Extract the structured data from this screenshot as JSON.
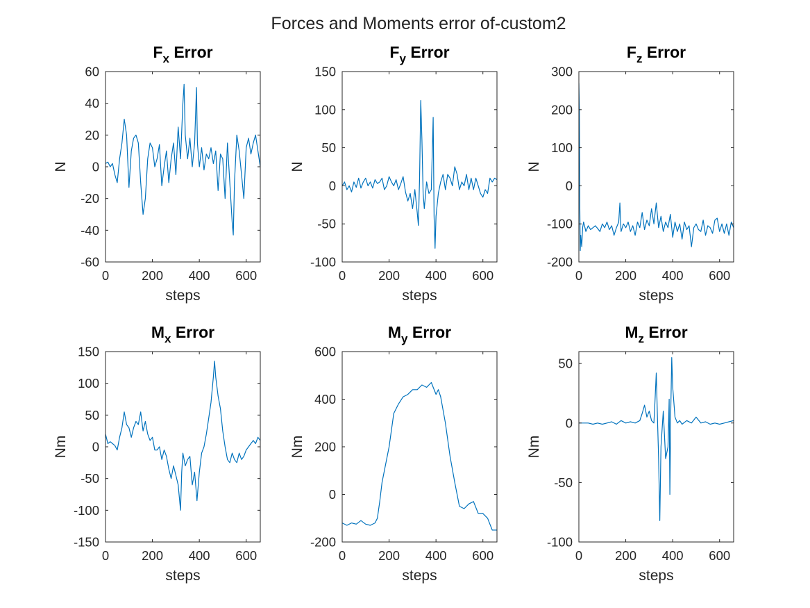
{
  "figure": {
    "title": "Forces and Moments error of-custom2",
    "line_color": "#0072BD"
  },
  "chart_data": [
    {
      "type": "line",
      "title_main": "F",
      "title_sub": "x",
      "title_rest": " Error",
      "xlabel": "steps",
      "ylabel": "N",
      "xlim": [
        0,
        660
      ],
      "ylim": [
        -60,
        60
      ],
      "xticks": [
        "0",
        "200",
        "400",
        "600"
      ],
      "yticks": [
        "-60",
        "-40",
        "-20",
        "0",
        "20",
        "40",
        "60"
      ],
      "grid": false,
      "series": [
        {
          "x": [
            0,
            10,
            20,
            30,
            40,
            50,
            60,
            70,
            80,
            90,
            100,
            110,
            120,
            130,
            140,
            150,
            160,
            170,
            180,
            190,
            200,
            210,
            220,
            230,
            240,
            250,
            260,
            270,
            280,
            290,
            300,
            310,
            320,
            330,
            335,
            340,
            350,
            360,
            370,
            380,
            388,
            392,
            400,
            410,
            420,
            430,
            440,
            450,
            460,
            470,
            480,
            490,
            500,
            510,
            520,
            530,
            540,
            545,
            550,
            560,
            570,
            580,
            590,
            600,
            610,
            620,
            630,
            640,
            650,
            660
          ],
          "y": [
            2,
            3,
            0,
            2,
            -5,
            -10,
            5,
            15,
            30,
            20,
            -13,
            10,
            18,
            20,
            15,
            -10,
            -30,
            -20,
            5,
            15,
            12,
            0,
            5,
            14,
            -12,
            0,
            10,
            -10,
            5,
            15,
            -5,
            25,
            5,
            40,
            52,
            20,
            5,
            18,
            0,
            15,
            50,
            15,
            0,
            12,
            -2,
            8,
            5,
            12,
            2,
            10,
            -15,
            8,
            5,
            -20,
            15,
            -10,
            -35,
            -43,
            -10,
            20,
            10,
            -5,
            -20,
            12,
            18,
            8,
            15,
            20,
            10,
            0
          ]
        }
      ]
    },
    {
      "type": "line",
      "title_main": "F",
      "title_sub": "y",
      "title_rest": " Error",
      "xlabel": "steps",
      "ylabel": "N",
      "xlim": [
        0,
        660
      ],
      "ylim": [
        -100,
        150
      ],
      "xticks": [
        "0",
        "200",
        "400",
        "600"
      ],
      "yticks": [
        "-100",
        "-50",
        "0",
        "50",
        "100",
        "150"
      ],
      "grid": false,
      "series": [
        {
          "x": [
            0,
            10,
            20,
            30,
            40,
            50,
            60,
            70,
            80,
            90,
            100,
            110,
            120,
            130,
            140,
            150,
            160,
            170,
            180,
            190,
            200,
            210,
            220,
            230,
            240,
            250,
            260,
            270,
            280,
            290,
            300,
            310,
            320,
            325,
            330,
            335,
            340,
            345,
            350,
            360,
            370,
            380,
            388,
            392,
            396,
            400,
            410,
            420,
            430,
            440,
            450,
            460,
            470,
            480,
            490,
            500,
            510,
            520,
            530,
            540,
            550,
            560,
            570,
            580,
            590,
            600,
            610,
            620,
            630,
            640,
            650,
            660
          ],
          "y": [
            0,
            5,
            -5,
            0,
            -8,
            5,
            -2,
            10,
            -3,
            5,
            10,
            0,
            5,
            -3,
            8,
            3,
            5,
            10,
            -5,
            0,
            12,
            5,
            0,
            8,
            -5,
            3,
            12,
            -8,
            -20,
            -10,
            -30,
            -5,
            -35,
            -52,
            10,
            112,
            60,
            -10,
            -30,
            5,
            -10,
            -5,
            90,
            -40,
            -82,
            -40,
            -10,
            5,
            15,
            -5,
            15,
            10,
            0,
            25,
            15,
            -5,
            5,
            0,
            15,
            -5,
            10,
            -5,
            10,
            0,
            -10,
            -15,
            -5,
            -10,
            10,
            5,
            10,
            8
          ]
        }
      ]
    },
    {
      "type": "line",
      "title_main": "F",
      "title_sub": "z",
      "title_rest": " Error",
      "xlabel": "steps",
      "ylabel": "N",
      "xlim": [
        0,
        660
      ],
      "ylim": [
        -200,
        300
      ],
      "xticks": [
        "0",
        "200",
        "400",
        "600"
      ],
      "yticks": [
        "-200",
        "-100",
        "0",
        "100",
        "200",
        "300"
      ],
      "grid": false,
      "series": [
        {
          "x": [
            0,
            2,
            4,
            6,
            8,
            12,
            16,
            20,
            30,
            40,
            50,
            60,
            70,
            80,
            90,
            100,
            110,
            120,
            130,
            140,
            150,
            160,
            170,
            175,
            180,
            190,
            200,
            210,
            220,
            230,
            240,
            250,
            260,
            270,
            280,
            290,
            300,
            310,
            320,
            330,
            340,
            350,
            360,
            370,
            380,
            390,
            400,
            410,
            420,
            430,
            440,
            450,
            460,
            470,
            480,
            490,
            500,
            510,
            520,
            530,
            540,
            550,
            560,
            570,
            580,
            590,
            600,
            610,
            620,
            630,
            640,
            650,
            660
          ],
          "y": [
            270,
            200,
            -60,
            -170,
            -130,
            -160,
            -110,
            -95,
            -120,
            -105,
            -115,
            -110,
            -105,
            -112,
            -120,
            -100,
            -110,
            -95,
            -115,
            -105,
            -130,
            -110,
            -95,
            -45,
            -120,
            -100,
            -110,
            -95,
            -120,
            -105,
            -130,
            -95,
            -110,
            -70,
            -115,
            -90,
            -105,
            -60,
            -100,
            -45,
            -110,
            -80,
            -120,
            -95,
            -110,
            -75,
            -135,
            -95,
            -120,
            -100,
            -140,
            -95,
            -115,
            -105,
            -160,
            -110,
            -100,
            -115,
            -120,
            -90,
            -130,
            -105,
            -110,
            -125,
            -90,
            -85,
            -120,
            -100,
            -125,
            -100,
            -130,
            -95,
            -110
          ]
        }
      ]
    },
    {
      "type": "line",
      "title_main": "M",
      "title_sub": "x",
      "title_rest": " Error",
      "xlabel": "steps",
      "ylabel": "Nm",
      "xlim": [
        0,
        660
      ],
      "ylim": [
        -150,
        150
      ],
      "xticks": [
        "0",
        "200",
        "400",
        "600"
      ],
      "yticks": [
        "-150",
        "-100",
        "-50",
        "0",
        "50",
        "100",
        "150"
      ],
      "grid": false,
      "series": [
        {
          "x": [
            0,
            10,
            20,
            30,
            40,
            50,
            60,
            70,
            80,
            90,
            100,
            110,
            120,
            130,
            140,
            150,
            160,
            170,
            180,
            190,
            200,
            210,
            220,
            230,
            240,
            250,
            260,
            270,
            280,
            290,
            300,
            310,
            320,
            325,
            330,
            340,
            350,
            360,
            370,
            380,
            390,
            400,
            410,
            420,
            430,
            440,
            450,
            460,
            465,
            470,
            480,
            490,
            500,
            510,
            520,
            530,
            540,
            550,
            560,
            570,
            580,
            590,
            600,
            610,
            620,
            630,
            640,
            650,
            660
          ],
          "y": [
            20,
            5,
            8,
            5,
            2,
            -5,
            15,
            30,
            55,
            35,
            30,
            15,
            30,
            40,
            35,
            55,
            25,
            40,
            20,
            10,
            15,
            -5,
            -5,
            0,
            -20,
            -5,
            -15,
            -35,
            -50,
            -30,
            -45,
            -60,
            -100,
            -40,
            -10,
            -30,
            -20,
            -15,
            -60,
            -40,
            -85,
            -40,
            -10,
            0,
            20,
            45,
            70,
            110,
            135,
            110,
            80,
            60,
            25,
            0,
            -20,
            -25,
            -10,
            -20,
            -25,
            -10,
            -20,
            -15,
            -5,
            0,
            5,
            10,
            5,
            15,
            10
          ]
        }
      ]
    },
    {
      "type": "line",
      "title_main": "M",
      "title_sub": "y",
      "title_rest": " Error",
      "xlabel": "steps",
      "ylabel": "Nm",
      "xlim": [
        0,
        660
      ],
      "ylim": [
        -200,
        600
      ],
      "xticks": [
        "0",
        "200",
        "400",
        "600"
      ],
      "yticks": [
        "-200",
        "0",
        "200",
        "400",
        "600"
      ],
      "grid": false,
      "series": [
        {
          "x": [
            0,
            20,
            40,
            60,
            80,
            100,
            120,
            140,
            150,
            160,
            170,
            180,
            200,
            220,
            240,
            260,
            280,
            300,
            320,
            340,
            360,
            380,
            400,
            410,
            420,
            440,
            460,
            480,
            500,
            520,
            540,
            560,
            580,
            600,
            620,
            640,
            660
          ],
          "y": [
            -120,
            -130,
            -120,
            -125,
            -110,
            -125,
            -130,
            -120,
            -100,
            -30,
            50,
            100,
            200,
            340,
            380,
            410,
            420,
            440,
            440,
            460,
            450,
            470,
            420,
            440,
            410,
            300,
            160,
            50,
            -50,
            -60,
            -40,
            -30,
            -80,
            -80,
            -100,
            -150,
            -150
          ]
        }
      ]
    },
    {
      "type": "line",
      "title_main": "M",
      "title_sub": "z",
      "title_rest": " Error",
      "xlabel": "steps",
      "ylabel": "Nm",
      "xlim": [
        0,
        660
      ],
      "ylim": [
        -100,
        60
      ],
      "xticks": [
        "0",
        "200",
        "400",
        "600"
      ],
      "yticks": [
        "-100",
        "-50",
        "0",
        "50"
      ],
      "grid": false,
      "series": [
        {
          "x": [
            0,
            20,
            40,
            60,
            80,
            100,
            120,
            140,
            160,
            180,
            200,
            220,
            240,
            260,
            270,
            280,
            290,
            300,
            310,
            320,
            325,
            330,
            335,
            340,
            345,
            350,
            360,
            370,
            380,
            385,
            388,
            392,
            396,
            400,
            410,
            420,
            430,
            440,
            460,
            480,
            500,
            520,
            540,
            560,
            580,
            600,
            620,
            640,
            660
          ],
          "y": [
            0,
            0,
            0,
            -1,
            0,
            -1,
            0,
            1,
            -1,
            2,
            0,
            1,
            0,
            2,
            8,
            15,
            5,
            10,
            2,
            0,
            20,
            42,
            5,
            -30,
            -82,
            -20,
            10,
            -30,
            -20,
            20,
            -60,
            10,
            55,
            30,
            5,
            0,
            2,
            -1,
            2,
            0,
            5,
            0,
            1,
            -1,
            0,
            -1,
            0,
            1,
            2
          ]
        }
      ]
    }
  ]
}
